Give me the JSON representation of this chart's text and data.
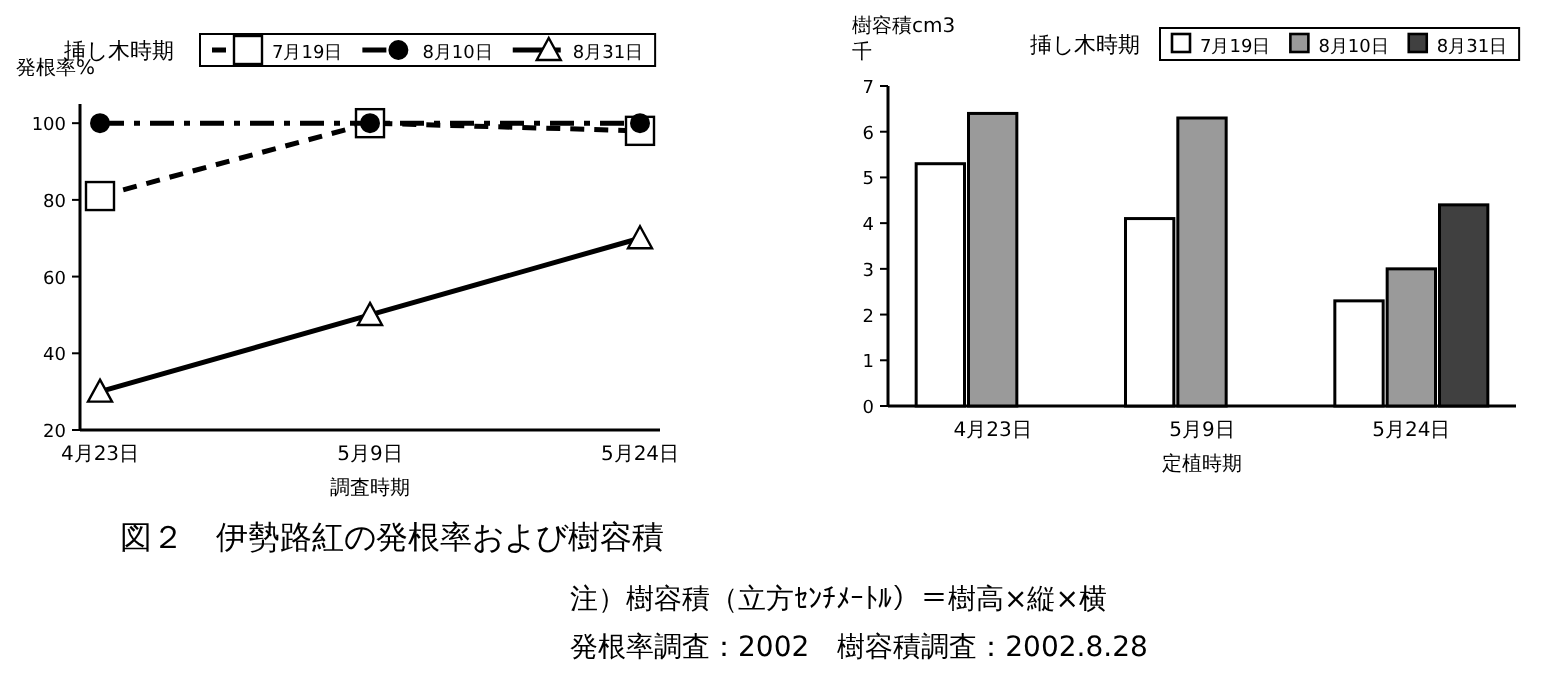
{
  "chart_data": [
    {
      "type": "line",
      "ylabel": "発根率%",
      "xlabel": "調査時期",
      "legend_title": "挿し木時期",
      "legend": "top right",
      "grid": false,
      "categories": [
        "4月23日",
        "5月9日",
        "5月24日"
      ],
      "ylim": [
        20,
        105
      ],
      "yticks": [
        20,
        40,
        60,
        80,
        100
      ],
      "series": [
        {
          "name": "7月19日",
          "color": "#000000",
          "marker": "square",
          "line_style": "dashed",
          "values": [
            81,
            100,
            98
          ]
        },
        {
          "name": "8月10日",
          "color": "#000000",
          "marker": "circle",
          "line_style": "dashdot",
          "values": [
            100,
            100,
            100
          ]
        },
        {
          "name": "8月31日",
          "color": "#000000",
          "marker": "triangle",
          "line_style": "solid",
          "values": [
            30,
            50,
            70
          ]
        }
      ],
      "annotations": [
        "図２　伊勢路紅の発根率および樹容積",
        "注）樹容積（立方ｾﾝﾁﾒｰﾄﾙ）＝樹高×縦×横",
        "発根率調査：2002　樹容積調査：2002.8.28"
      ]
    },
    {
      "type": "bar",
      "ylabel": "樹容積cm3 千",
      "xlabel": "定植時期",
      "legend_title": "挿し木時期",
      "legend": "top right",
      "grid": false,
      "categories": [
        "4月23日",
        "5月9日",
        "5月24日"
      ],
      "ylim": [
        0,
        7
      ],
      "yticks": [
        0,
        1,
        2,
        3,
        4,
        5,
        6,
        7
      ],
      "series": [
        {
          "name": "7月19日",
          "color": "#ffffff",
          "values": [
            5.3,
            4.1,
            2.3
          ]
        },
        {
          "name": "8月10日",
          "color": "#9a9a9a",
          "values": [
            6.4,
            6.3,
            3.0
          ]
        },
        {
          "name": "8月31日",
          "color": "#404040",
          "values": [
            null,
            null,
            4.4
          ]
        }
      ]
    }
  ]
}
